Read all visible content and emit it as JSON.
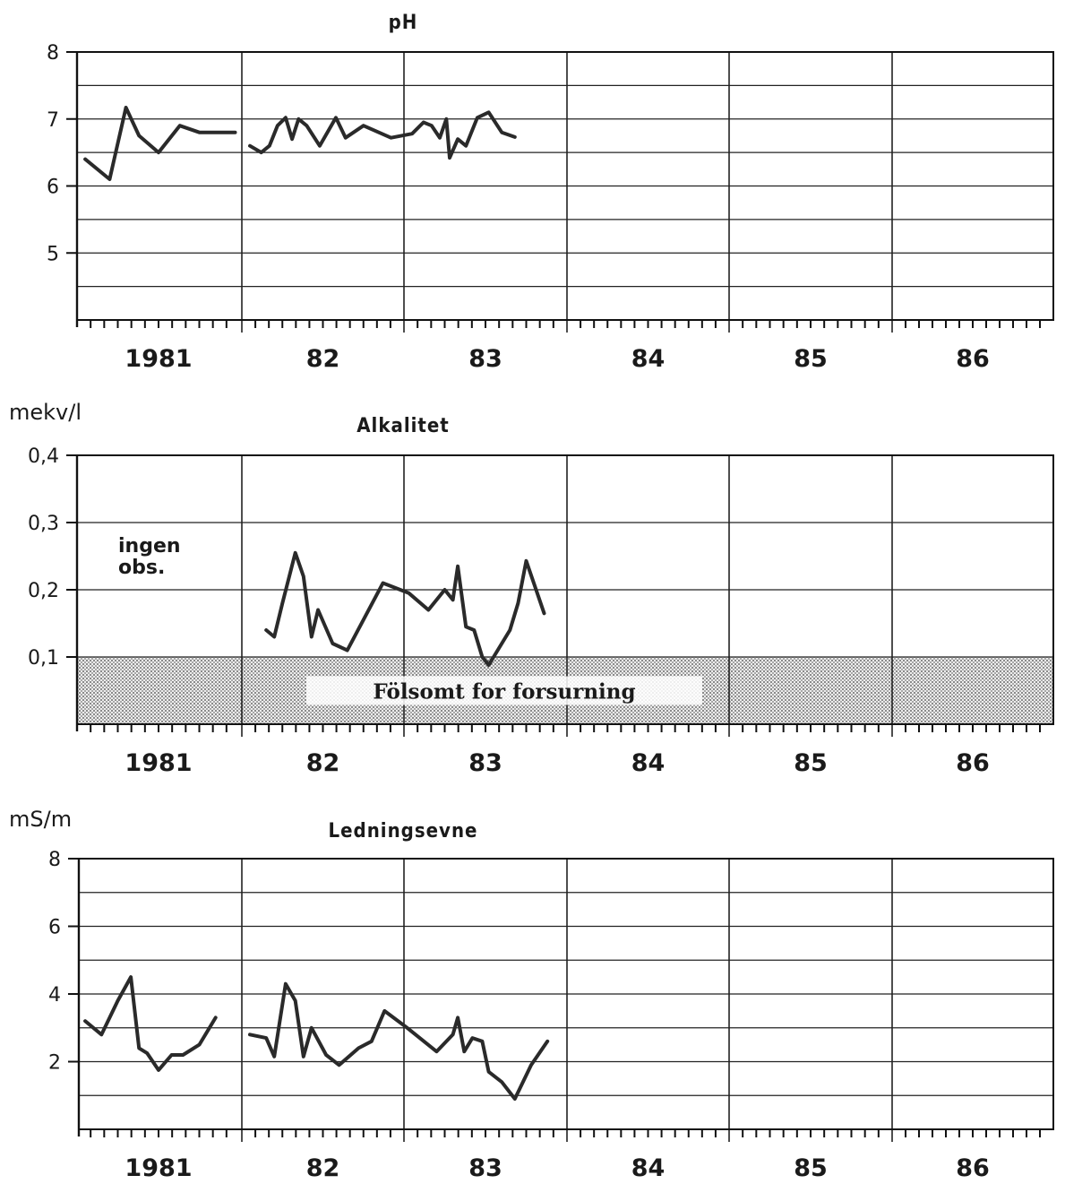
{
  "chart_data": [
    {
      "type": "line",
      "title": "pH",
      "ylabel": "",
      "xlabel": "",
      "ylim": [
        4,
        8
      ],
      "yticks": [
        "8",
        "7",
        "6",
        "5"
      ],
      "xlim": [
        1981,
        1987
      ],
      "year_labels": [
        "1981",
        "82",
        "83",
        "84",
        "85",
        "86"
      ],
      "grid": true,
      "series": [
        {
          "values": [
            [
              1981.05,
              6.4
            ],
            [
              1981.2,
              6.1
            ],
            [
              1981.3,
              7.17
            ],
            [
              1981.38,
              6.75
            ],
            [
              1981.5,
              6.5
            ],
            [
              1981.63,
              6.9
            ],
            [
              1981.75,
              6.8
            ],
            [
              1981.88,
              6.8
            ],
            [
              1981.97,
              6.8
            ]
          ]
        },
        {
          "values": [
            [
              1982.05,
              6.6
            ],
            [
              1982.12,
              6.5
            ],
            [
              1982.17,
              6.6
            ],
            [
              1982.22,
              6.9
            ],
            [
              1982.27,
              7.02
            ],
            [
              1982.31,
              6.7
            ],
            [
              1982.35,
              7.0
            ],
            [
              1982.4,
              6.9
            ],
            [
              1982.48,
              6.6
            ],
            [
              1982.58,
              7.02
            ],
            [
              1982.64,
              6.72
            ],
            [
              1982.75,
              6.9
            ],
            [
              1982.92,
              6.72
            ],
            [
              1983.05,
              6.78
            ],
            [
              1983.12,
              6.95
            ],
            [
              1983.17,
              6.9
            ],
            [
              1983.22,
              6.72
            ],
            [
              1983.26,
              7.0
            ],
            [
              1983.28,
              6.42
            ],
            [
              1983.33,
              6.7
            ],
            [
              1983.38,
              6.6
            ],
            [
              1983.45,
              7.02
            ],
            [
              1983.52,
              7.1
            ],
            [
              1983.6,
              6.8
            ],
            [
              1983.68,
              6.73
            ]
          ]
        }
      ]
    },
    {
      "type": "line",
      "title": "Alkalitet",
      "ylabel": "mekv/l",
      "xlabel": "",
      "ylim": [
        0,
        0.4
      ],
      "yticks": [
        "0,4",
        "0,3",
        "0,2",
        "0,1"
      ],
      "xlim": [
        1981,
        1987
      ],
      "year_labels": [
        "1981",
        "82",
        "83",
        "84",
        "85",
        "86"
      ],
      "grid": true,
      "annotation": "ingen\nobs.",
      "shaded_band": {
        "from": 0,
        "to": 0.1,
        "label": "Fölsomt for forsurning"
      },
      "series": [
        {
          "values": [
            [
              1982.15,
              0.14
            ],
            [
              1982.2,
              0.13
            ],
            [
              1982.25,
              0.18
            ],
            [
              1982.33,
              0.255
            ],
            [
              1982.38,
              0.22
            ],
            [
              1982.43,
              0.13
            ],
            [
              1982.47,
              0.17
            ],
            [
              1982.56,
              0.12
            ],
            [
              1982.65,
              0.11
            ],
            [
              1982.87,
              0.21
            ],
            [
              1983.03,
              0.195
            ],
            [
              1983.15,
              0.17
            ],
            [
              1983.25,
              0.2
            ],
            [
              1983.3,
              0.185
            ],
            [
              1983.33,
              0.235
            ],
            [
              1983.38,
              0.145
            ],
            [
              1983.43,
              0.14
            ],
            [
              1983.48,
              0.1
            ],
            [
              1983.52,
              0.088
            ],
            [
              1983.65,
              0.14
            ],
            [
              1983.7,
              0.18
            ],
            [
              1983.75,
              0.243
            ],
            [
              1983.86,
              0.165
            ]
          ]
        }
      ]
    },
    {
      "type": "line",
      "title": "Ledningsevne",
      "ylabel": "mS/m",
      "xlabel": "",
      "ylim": [
        0,
        8
      ],
      "yticks": [
        "8",
        "6",
        "4",
        "2"
      ],
      "xlim": [
        1981,
        1987
      ],
      "year_labels": [
        "1981",
        "82",
        "83",
        "84",
        "85",
        "86"
      ],
      "grid": true,
      "series": [
        {
          "values": [
            [
              1981.05,
              3.2
            ],
            [
              1981.15,
              2.8
            ],
            [
              1981.25,
              3.8
            ],
            [
              1981.33,
              4.5
            ],
            [
              1981.38,
              2.4
            ],
            [
              1981.43,
              2.25
            ],
            [
              1981.5,
              1.75
            ],
            [
              1981.58,
              2.2
            ],
            [
              1981.65,
              2.2
            ],
            [
              1981.75,
              2.5
            ],
            [
              1981.85,
              3.3
            ]
          ]
        },
        {
          "values": [
            [
              1982.05,
              2.8
            ],
            [
              1982.15,
              2.7
            ],
            [
              1982.2,
              2.15
            ],
            [
              1982.27,
              4.3
            ],
            [
              1982.33,
              3.8
            ],
            [
              1982.38,
              2.15
            ],
            [
              1982.43,
              3.0
            ],
            [
              1982.52,
              2.2
            ],
            [
              1982.6,
              1.9
            ],
            [
              1982.72,
              2.4
            ],
            [
              1982.8,
              2.6
            ],
            [
              1982.88,
              3.5
            ],
            [
              1983.02,
              3.0
            ],
            [
              1983.2,
              2.3
            ],
            [
              1983.3,
              2.8
            ],
            [
              1983.33,
              3.3
            ],
            [
              1983.37,
              2.3
            ],
            [
              1983.42,
              2.7
            ],
            [
              1983.48,
              2.6
            ],
            [
              1983.52,
              1.7
            ],
            [
              1983.6,
              1.4
            ],
            [
              1983.68,
              0.9
            ],
            [
              1983.78,
              1.9
            ],
            [
              1983.88,
              2.6
            ]
          ]
        }
      ]
    }
  ]
}
